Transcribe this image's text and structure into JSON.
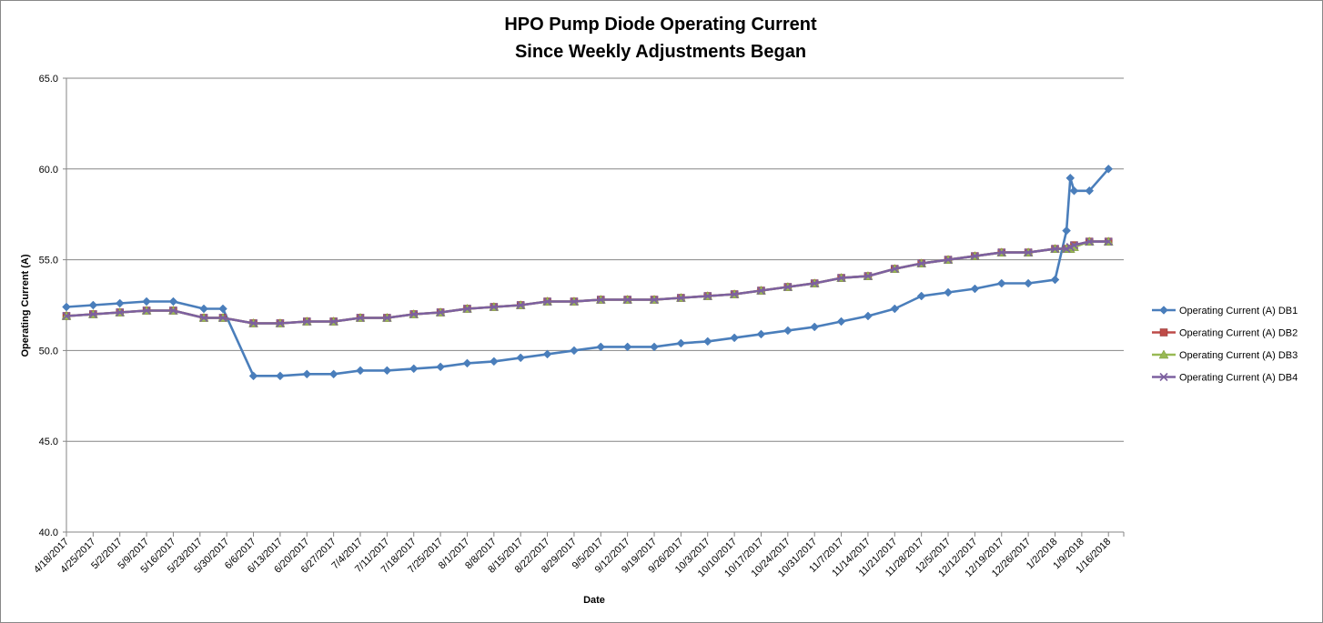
{
  "chart_data": {
    "type": "line",
    "title": [
      "HPO Pump Diode Operating Current",
      "Since Weekly Adjustments Began"
    ],
    "xlabel": "Date",
    "ylabel": "Operating Current (A)",
    "ylim": [
      40.0,
      65.0
    ],
    "y_ticks": [
      "40.0",
      "45.0",
      "50.0",
      "55.0",
      "60.0",
      "65.0"
    ],
    "grid": "horizontal",
    "legend_position": "right",
    "x_start": "2017-04-18",
    "x_end": "2018-01-20",
    "x_tick_labels": [
      "4/18/2017",
      "4/25/2017",
      "5/2/2017",
      "5/9/2017",
      "5/16/2017",
      "5/23/2017",
      "5/30/2017",
      "6/6/2017",
      "6/13/2017",
      "6/20/2017",
      "6/27/2017",
      "7/4/2017",
      "7/11/2017",
      "7/18/2017",
      "7/25/2017",
      "8/1/2017",
      "8/8/2017",
      "8/15/2017",
      "8/22/2017",
      "8/29/2017",
      "9/5/2017",
      "9/12/2017",
      "9/19/2017",
      "9/26/2017",
      "10/3/2017",
      "10/10/2017",
      "10/17/2017",
      "10/24/2017",
      "10/31/2017",
      "11/7/2017",
      "11/14/2017",
      "11/21/2017",
      "11/28/2017",
      "12/5/2017",
      "12/12/2017",
      "12/19/2017",
      "12/26/2017",
      "1/2/2018",
      "1/9/2018",
      "1/16/2018"
    ],
    "x": [
      "2017-04-18",
      "2017-04-25",
      "2017-05-02",
      "2017-05-09",
      "2017-05-16",
      "2017-05-24",
      "2017-05-29",
      "2017-06-06",
      "2017-06-13",
      "2017-06-20",
      "2017-06-27",
      "2017-07-04",
      "2017-07-11",
      "2017-07-18",
      "2017-07-25",
      "2017-08-01",
      "2017-08-08",
      "2017-08-15",
      "2017-08-22",
      "2017-08-29",
      "2017-09-05",
      "2017-09-12",
      "2017-09-19",
      "2017-09-26",
      "2017-10-03",
      "2017-10-10",
      "2017-10-17",
      "2017-10-24",
      "2017-10-31",
      "2017-11-07",
      "2017-11-14",
      "2017-11-21",
      "2017-11-28",
      "2017-12-05",
      "2017-12-12",
      "2017-12-19",
      "2017-12-26",
      "2018-01-02",
      "2018-01-05",
      "2018-01-06",
      "2018-01-07",
      "2018-01-11",
      "2018-01-16"
    ],
    "series": [
      {
        "name": "Operating Current (A) DB1",
        "color": "#4a7ebb",
        "marker": "diamond",
        "values": [
          52.4,
          52.5,
          52.6,
          52.7,
          52.7,
          52.3,
          52.3,
          48.6,
          48.6,
          48.7,
          48.7,
          48.9,
          48.9,
          49.0,
          49.1,
          49.3,
          49.4,
          49.6,
          49.8,
          50.0,
          50.2,
          50.2,
          50.2,
          50.4,
          50.5,
          50.7,
          50.9,
          51.1,
          51.3,
          51.6,
          51.9,
          52.3,
          53.0,
          53.2,
          53.4,
          53.7,
          53.7,
          53.9,
          56.6,
          59.5,
          58.8,
          58.8,
          60.0
        ]
      },
      {
        "name": "Operating Current (A) DB2",
        "color": "#be4b48",
        "marker": "square",
        "values": [
          51.9,
          52.0,
          52.1,
          52.2,
          52.2,
          51.8,
          51.8,
          51.5,
          51.5,
          51.6,
          51.6,
          51.8,
          51.8,
          52.0,
          52.1,
          52.3,
          52.4,
          52.5,
          52.7,
          52.7,
          52.8,
          52.8,
          52.8,
          52.9,
          53.0,
          53.1,
          53.3,
          53.5,
          53.7,
          54.0,
          54.1,
          54.5,
          54.8,
          55.0,
          55.2,
          55.4,
          55.4,
          55.6,
          55.6,
          55.6,
          55.8,
          56.0,
          56.0
        ]
      },
      {
        "name": "Operating Current (A) DB3",
        "color": "#98b954",
        "marker": "triangle",
        "values": [
          51.9,
          52.0,
          52.1,
          52.2,
          52.2,
          51.8,
          51.8,
          51.5,
          51.5,
          51.6,
          51.6,
          51.8,
          51.8,
          52.0,
          52.1,
          52.3,
          52.4,
          52.5,
          52.7,
          52.7,
          52.8,
          52.8,
          52.8,
          52.9,
          53.0,
          53.1,
          53.3,
          53.5,
          53.7,
          54.0,
          54.1,
          54.5,
          54.8,
          55.0,
          55.2,
          55.4,
          55.4,
          55.6,
          55.6,
          55.6,
          55.7,
          56.0,
          56.0
        ]
      },
      {
        "name": "Operating Current (A) DB4",
        "color": "#7d60a0",
        "marker": "x",
        "values": [
          51.9,
          52.0,
          52.1,
          52.2,
          52.2,
          51.8,
          51.8,
          51.5,
          51.5,
          51.6,
          51.6,
          51.8,
          51.8,
          52.0,
          52.1,
          52.3,
          52.4,
          52.5,
          52.7,
          52.7,
          52.8,
          52.8,
          52.8,
          52.9,
          53.0,
          53.1,
          53.3,
          53.5,
          53.7,
          54.0,
          54.1,
          54.5,
          54.8,
          55.0,
          55.2,
          55.4,
          55.4,
          55.6,
          55.6,
          55.7,
          55.8,
          56.0,
          56.0
        ]
      }
    ]
  }
}
